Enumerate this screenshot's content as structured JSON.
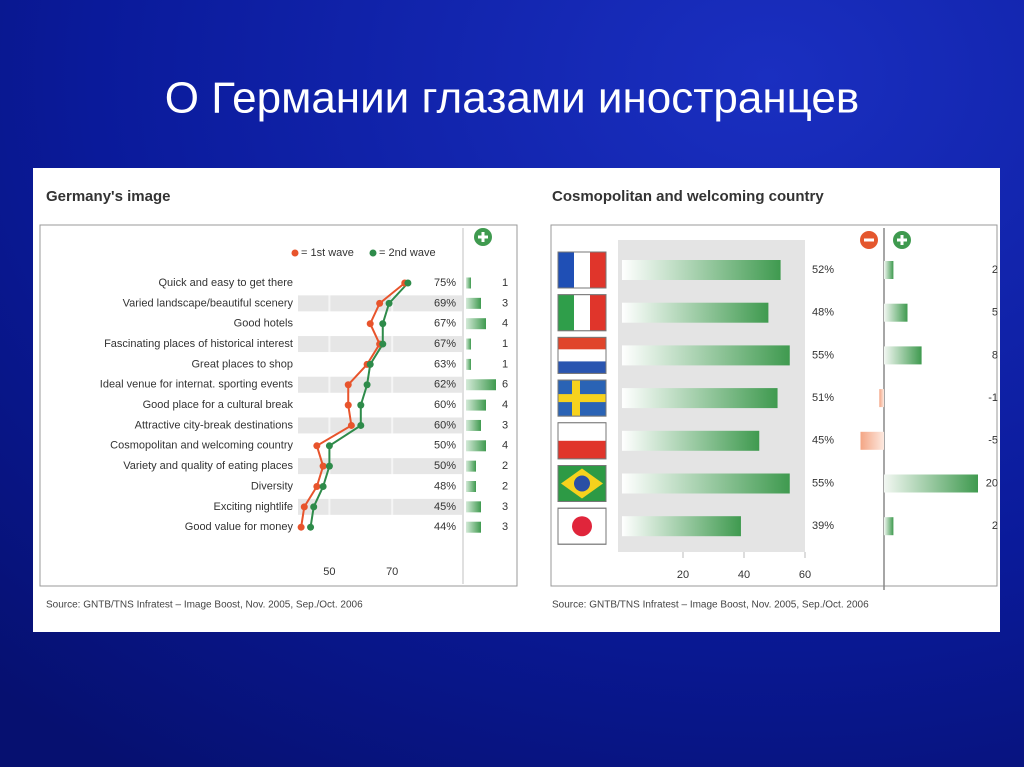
{
  "title": "О Германии глазами иностранцев",
  "chart_data": [
    {
      "type": "line",
      "orientation": "horizontal",
      "title": "Germany's image",
      "categories": [
        "Quick and easy to get there",
        "Varied landscape/beautiful scenery",
        "Good hotels",
        "Fascinating places of historical interest",
        "Great places to shop",
        "Ideal venue for internat. sporting events",
        "Good place for a cultural break",
        "Attractive city-break destinations",
        "Cosmopolitan and welcoming country",
        "Variety and quality of eating places",
        "Diversity",
        "Exciting nightlife",
        "Good value for money"
      ],
      "series": [
        {
          "name": "= 1st wave",
          "color": "#e8542c",
          "values": [
            74,
            66,
            63,
            66,
            62,
            56,
            56,
            57,
            46,
            48,
            46,
            42,
            41
          ]
        },
        {
          "name": "= 2nd wave",
          "color": "#2e8b4a",
          "values": [
            75,
            69,
            67,
            67,
            63,
            62,
            60,
            60,
            50,
            50,
            48,
            45,
            44
          ],
          "value_labels": [
            "75%",
            "69%",
            "67%",
            "67%",
            "63%",
            "62%",
            "60%",
            "60%",
            "50%",
            "50%",
            "48%",
            "45%",
            "44%"
          ]
        }
      ],
      "change": {
        "color": "#3f9a4f",
        "values": [
          1,
          3,
          4,
          1,
          1,
          6,
          4,
          3,
          4,
          2,
          2,
          3,
          3
        ]
      },
      "xlim": [
        40,
        90
      ],
      "xticks": [
        50,
        70
      ],
      "source": "Source: GNTB/TNS Infratest – Image Boost, Nov. 2005, Sep./Oct. 2006"
    },
    {
      "type": "bar",
      "orientation": "horizontal",
      "title": "Cosmopolitan and welcoming country",
      "categories": [
        null,
        null,
        null,
        null,
        null,
        null,
        null
      ],
      "values": [
        52,
        48,
        55,
        51,
        45,
        55,
        39
      ],
      "value_labels": [
        "52%",
        "48%",
        "55%",
        "51%",
        "45%",
        "55%",
        "39%"
      ],
      "color": "#3f9a4f",
      "xlim": [
        0,
        60
      ],
      "xticks": [
        20,
        40,
        60
      ],
      "change": {
        "color": "#3f9a4f",
        "negative_color": "#f4a584",
        "values": [
          2,
          5,
          8,
          -1,
          -5,
          20,
          2
        ]
      },
      "source": "Source: GNTB/TNS Infratest – Image Boost, Nov. 2005, Sep./Oct. 2006"
    }
  ]
}
